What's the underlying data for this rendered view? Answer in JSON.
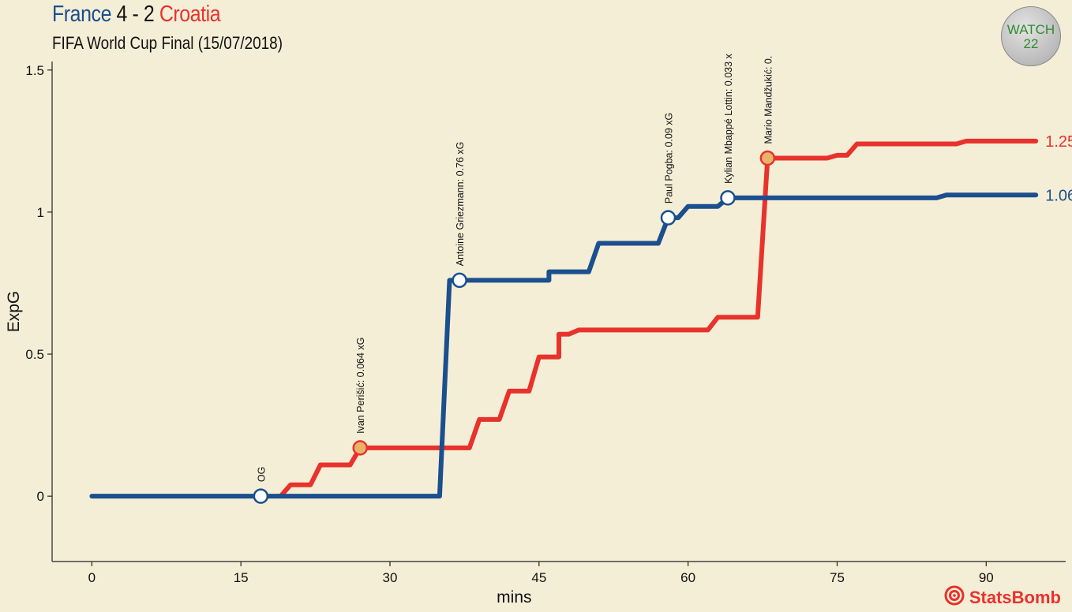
{
  "header": {
    "team1": "France",
    "score": "4 - 2",
    "team2": "Croatia",
    "subtitle": "FIFA World Cup Final (15/07/2018)"
  },
  "badge": {
    "line1": "WATCH",
    "line2": "22"
  },
  "brand": {
    "name": "StatsBomb",
    "icon": "target-icon"
  },
  "colors": {
    "background": "#f5eed7",
    "france": "#1b4f8e",
    "croatia": "#e8322c",
    "goal_marker_france": "#ffffff",
    "goal_marker_croatia": "#e8b36a"
  },
  "chart_data": {
    "type": "line",
    "xlabel": "mins",
    "ylabel": "ExpG",
    "xlim": [
      -4,
      98
    ],
    "ylim": [
      -0.23,
      1.53
    ],
    "xticks": [
      0,
      15,
      30,
      45,
      60,
      75,
      90
    ],
    "yticks": [
      0,
      0.5,
      1,
      1.5
    ],
    "ytick_labels": [
      "0",
      "0.5",
      "1",
      "1.5"
    ],
    "grid": false,
    "series": [
      {
        "name": "France",
        "color": "#1b4f8e",
        "end_label": "1.06",
        "steps": [
          [
            0,
            0
          ],
          [
            35,
            0
          ],
          [
            36,
            0.76
          ],
          [
            46,
            0.76
          ],
          [
            46,
            0.79
          ],
          [
            50,
            0.79
          ],
          [
            51,
            0.89
          ],
          [
            57,
            0.89
          ],
          [
            58,
            0.98
          ],
          [
            59,
            0.98
          ],
          [
            60,
            1.02
          ],
          [
            63,
            1.02
          ],
          [
            64,
            1.05
          ],
          [
            85,
            1.05
          ],
          [
            86,
            1.06
          ],
          [
            95,
            1.06
          ]
        ]
      },
      {
        "name": "Croatia",
        "color": "#e8322c",
        "end_label": "1.25",
        "steps": [
          [
            19,
            0
          ],
          [
            20,
            0.04
          ],
          [
            22,
            0.04
          ],
          [
            23,
            0.11
          ],
          [
            26,
            0.11
          ],
          [
            27,
            0.17
          ],
          [
            38,
            0.17
          ],
          [
            39,
            0.27
          ],
          [
            41,
            0.27
          ],
          [
            42,
            0.37
          ],
          [
            44,
            0.37
          ],
          [
            45,
            0.49
          ],
          [
            47,
            0.49
          ],
          [
            47,
            0.57
          ],
          [
            48,
            0.57
          ],
          [
            49,
            0.585
          ],
          [
            62,
            0.585
          ],
          [
            63,
            0.63
          ],
          [
            67,
            0.63
          ],
          [
            68,
            1.19
          ],
          [
            74,
            1.19
          ],
          [
            75,
            1.2
          ],
          [
            76,
            1.2
          ],
          [
            77,
            1.24
          ],
          [
            87,
            1.24
          ],
          [
            88,
            1.25
          ],
          [
            95,
            1.25
          ]
        ]
      }
    ],
    "goals": [
      {
        "team": "France",
        "minute": 17,
        "xg": 0,
        "label": "OG"
      },
      {
        "team": "Croatia",
        "minute": 27,
        "xg": 0.17,
        "label": "Ivan Perišić: 0.064 xG"
      },
      {
        "team": "France",
        "minute": 37,
        "xg": 0.76,
        "label": "Antoine Griezmann: 0.76 xG"
      },
      {
        "team": "France",
        "minute": 58,
        "xg": 0.98,
        "label": "Paul Pogba: 0.09 xG"
      },
      {
        "team": "France",
        "minute": 64,
        "xg": 1.05,
        "label": "Kylian Mbappé Lottin: 0.033 x"
      },
      {
        "team": "Croatia",
        "minute": 68,
        "xg": 1.19,
        "label": "Mario Mandžukić: 0."
      }
    ]
  }
}
